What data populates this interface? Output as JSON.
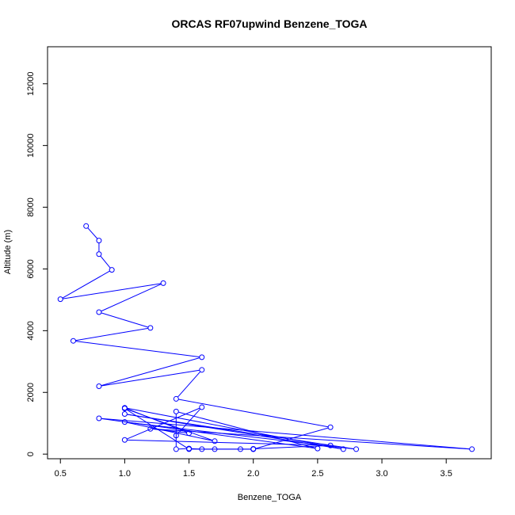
{
  "chart_data": {
    "type": "line",
    "title": "ORCAS RF07upwind Benzene_TOGA",
    "xlabel": "Benzene_TOGA",
    "ylabel": "Altitude (m)",
    "xlim": [
      0.4,
      3.85
    ],
    "ylim": [
      -150,
      13200
    ],
    "x_ticks": [
      0.5,
      1.0,
      1.5,
      2.0,
      2.5,
      3.0,
      3.5
    ],
    "x_tick_labels": [
      "0.5",
      "1.0",
      "1.5",
      "2.0",
      "2.5",
      "3.0",
      "3.5"
    ],
    "y_ticks": [
      0,
      2000,
      4000,
      6000,
      8000,
      10000,
      12000
    ],
    "y_tick_labels": [
      "0",
      "2000",
      "4000",
      "6000",
      "8000",
      "10000",
      "12000"
    ],
    "series_color": "#0000ff",
    "marker": "open-circle",
    "points": [
      {
        "x": 0.7,
        "y": 7390
      },
      {
        "x": 0.8,
        "y": 6920
      },
      {
        "x": 0.8,
        "y": 6480
      },
      {
        "x": 0.9,
        "y": 5970
      },
      {
        "x": 0.5,
        "y": 5020
      },
      {
        "x": 1.3,
        "y": 5540
      },
      {
        "x": 0.8,
        "y": 4600
      },
      {
        "x": 1.2,
        "y": 4090
      },
      {
        "x": 0.6,
        "y": 3670
      },
      {
        "x": 1.6,
        "y": 3140
      },
      {
        "x": 0.8,
        "y": 2200
      },
      {
        "x": 1.6,
        "y": 2730
      },
      {
        "x": 1.4,
        "y": 1790
      },
      {
        "x": 2.6,
        "y": 870
      },
      {
        "x": 2.0,
        "y": 160
      },
      {
        "x": 1.5,
        "y": 160
      },
      {
        "x": 1.0,
        "y": 1480
      },
      {
        "x": 1.7,
        "y": 420
      },
      {
        "x": 1.0,
        "y": 1040
      },
      {
        "x": 2.8,
        "y": 160
      },
      {
        "x": 1.0,
        "y": 1300
      },
      {
        "x": 2.7,
        "y": 160
      },
      {
        "x": 1.0,
        "y": 1500
      },
      {
        "x": 1.5,
        "y": 680
      },
      {
        "x": 1.2,
        "y": 820
      },
      {
        "x": 3.7,
        "y": 160
      },
      {
        "x": 0.8,
        "y": 1160
      },
      {
        "x": 2.5,
        "y": 180
      },
      {
        "x": 1.4,
        "y": 1380
      },
      {
        "x": 1.4,
        "y": 160
      },
      {
        "x": 1.5,
        "y": 180
      },
      {
        "x": 1.6,
        "y": 160
      },
      {
        "x": 1.7,
        "y": 160
      },
      {
        "x": 1.9,
        "y": 160
      },
      {
        "x": 2.0,
        "y": 160
      },
      {
        "x": 2.0,
        "y": 170
      },
      {
        "x": 2.6,
        "y": 280
      },
      {
        "x": 1.0,
        "y": 460
      },
      {
        "x": 1.6,
        "y": 1520
      },
      {
        "x": 1.4,
        "y": 600
      }
    ]
  }
}
